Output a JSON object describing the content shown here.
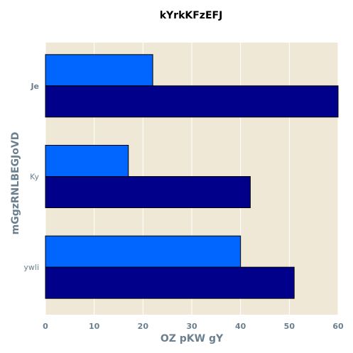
{
  "chart_data": {
    "type": "bar",
    "orientation": "horizontal",
    "title": "kYrkKFzEFJ",
    "xlabel": "OZ  pKW gY",
    "ylabel": "mGgzRNLBEGJoVD",
    "categories": [
      "Je",
      "Ky",
      "ywli"
    ],
    "xlim": [
      0,
      60
    ],
    "xticks": [
      0,
      10,
      20,
      30,
      40,
      50,
      60
    ],
    "grid": true,
    "legend": "none",
    "series": [
      {
        "values": [
          22,
          17,
          40
        ],
        "color": "#0066ff"
      },
      {
        "values": [
          60,
          42,
          51
        ],
        "color": "#00008b"
      }
    ],
    "background": "#efe8d6",
    "text_color": "#6b7f8e"
  }
}
